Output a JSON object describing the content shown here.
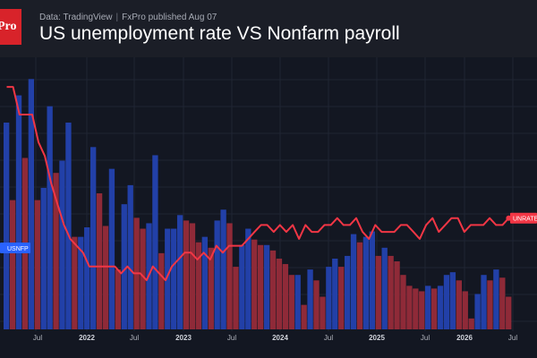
{
  "header": {
    "logo_text": "Pro",
    "source": "Data: TradingView",
    "publisher": "FxPro published Aug 07",
    "separator": "|",
    "title": "US unemployment rate VS Nonfarm payroll"
  },
  "chart_data": {
    "type": "bar",
    "title": "US unemployment rate VS Nonfarm payroll",
    "x_tick_labels": [
      "Jul",
      "2022",
      "Jul",
      "2023",
      "Jul",
      "2024",
      "Jul",
      "2025",
      "Jul",
      "2026",
      "Jul"
    ],
    "bar_series": {
      "name": "USNFP",
      "values": [
        760,
        475,
        860,
        630,
        920,
        475,
        520,
        820,
        575,
        620,
        760,
        340,
        340,
        375,
        670,
        500,
        380,
        590,
        220,
        460,
        530,
        410,
        370,
        390,
        640,
        280,
        370,
        370,
        420,
        400,
        390,
        320,
        340,
        300,
        400,
        440,
        390,
        230,
        310,
        370,
        330,
        310,
        310,
        290,
        260,
        240,
        200,
        200,
        90,
        220,
        180,
        120,
        230,
        260,
        230,
        270,
        350,
        320,
        340,
        360,
        270,
        300,
        270,
        250,
        200,
        160,
        150,
        140,
        160,
        150,
        160,
        200,
        210,
        180,
        140,
        40,
        130,
        200,
        180,
        220,
        190,
        120
      ],
      "colors": {
        "positive_rising": "#2240a8",
        "falling": "#8f2a38"
      }
    },
    "line_series": {
      "name": "UNRATE",
      "color": "#f23645",
      "values": [
        6.2,
        6.2,
        5.8,
        5.8,
        5.8,
        5.4,
        5.2,
        4.8,
        4.5,
        4.2,
        4.0,
        3.9,
        3.8,
        3.6,
        3.6,
        3.6,
        3.6,
        3.6,
        3.5,
        3.6,
        3.5,
        3.5,
        3.4,
        3.6,
        3.5,
        3.4,
        3.6,
        3.7,
        3.8,
        3.8,
        3.7,
        3.8,
        3.7,
        3.9,
        3.8,
        3.9,
        3.9,
        3.9,
        4.0,
        4.1,
        4.2,
        4.2,
        4.1,
        4.2,
        4.1,
        4.2,
        4.0,
        4.2,
        4.1,
        4.1,
        4.2,
        4.2,
        4.3,
        4.2,
        4.2,
        4.3,
        4.1,
        4.0,
        4.2,
        4.1,
        4.1,
        4.1,
        4.2,
        4.2,
        4.1,
        4.0,
        4.2,
        4.3,
        4.1,
        4.2,
        4.3,
        4.3,
        4.1,
        4.2,
        4.2,
        4.2,
        4.3,
        4.2,
        4.2,
        4.3
      ]
    },
    "grid": true,
    "legend": "none",
    "badges": {
      "left_label": "USNFP",
      "left_color": "#2962ff",
      "right_label": "UNRATE",
      "right_color": "#f23645"
    }
  }
}
